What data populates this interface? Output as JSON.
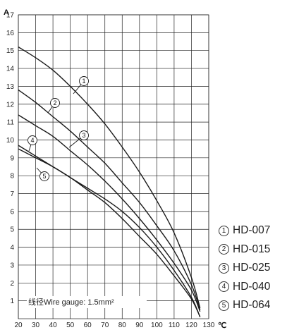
{
  "chart_data": {
    "type": "line",
    "xlabel": "",
    "ylabel": "",
    "x_unit": "℃",
    "y_unit": "A",
    "xlim": [
      20,
      130
    ],
    "ylim": [
      0,
      17
    ],
    "x_ticks": [
      20,
      30,
      40,
      50,
      60,
      70,
      80,
      90,
      100,
      110,
      120,
      130
    ],
    "y_ticks": [
      1,
      2,
      3,
      4,
      5,
      6,
      7,
      8,
      9,
      10,
      11,
      12,
      13,
      14,
      15,
      16,
      17
    ],
    "grid": true,
    "annotation": "线径Wire gauge: 1.5mm²",
    "series": [
      {
        "name": "HD-007",
        "marker": "①",
        "x": [
          20,
          30,
          40,
          50,
          60,
          70,
          80,
          90,
          100,
          110,
          120,
          125
        ],
        "y": [
          15.2,
          14.6,
          13.9,
          13.0,
          12.0,
          10.9,
          9.6,
          8.2,
          6.6,
          4.8,
          2.3,
          0.6
        ]
      },
      {
        "name": "HD-015",
        "marker": "②",
        "x": [
          20,
          30,
          40,
          50,
          60,
          70,
          80,
          90,
          100,
          110,
          120,
          125
        ],
        "y": [
          12.8,
          12.1,
          11.3,
          10.5,
          9.6,
          8.7,
          7.6,
          6.5,
          5.2,
          3.8,
          1.9,
          0.5
        ]
      },
      {
        "name": "HD-025",
        "marker": "③",
        "x": [
          20,
          30,
          40,
          50,
          60,
          70,
          80,
          90,
          100,
          110,
          120,
          125
        ],
        "y": [
          11.4,
          10.8,
          10.2,
          9.4,
          8.6,
          7.7,
          6.7,
          5.6,
          4.4,
          3.1,
          1.6,
          0.4
        ]
      },
      {
        "name": "HD-040",
        "marker": "④",
        "x": [
          20,
          30,
          40,
          50,
          60,
          70,
          80,
          90,
          100,
          110,
          120,
          125
        ],
        "y": [
          9.7,
          9.1,
          8.5,
          7.9,
          7.2,
          6.5,
          5.6,
          4.6,
          3.6,
          2.4,
          1.1,
          0.1
        ]
      },
      {
        "name": "HD-064",
        "marker": "⑤",
        "x": [
          20,
          30,
          40,
          50,
          60,
          70,
          80,
          90,
          100,
          110,
          120,
          125
        ],
        "y": [
          9.5,
          9.0,
          8.5,
          7.9,
          7.3,
          6.7,
          6.0,
          5.1,
          4.0,
          2.7,
          1.2,
          0.1
        ]
      }
    ]
  }
}
